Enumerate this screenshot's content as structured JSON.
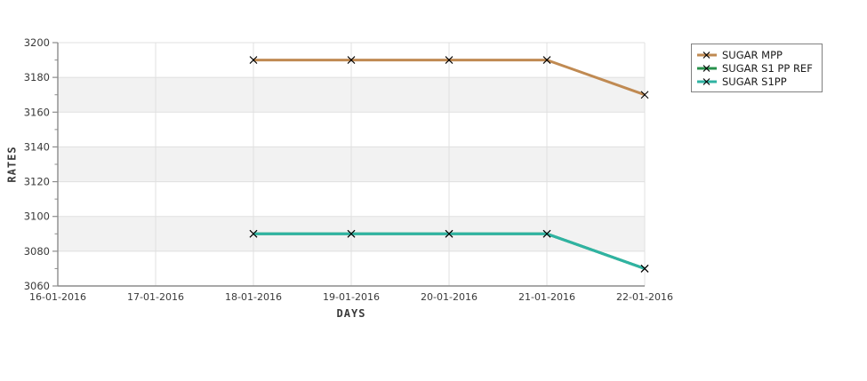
{
  "page": {
    "background": "#ffffff"
  },
  "chart_data": {
    "type": "line",
    "title": "",
    "xlabel": "DAYS",
    "ylabel": "RATES",
    "categories": [
      "16-01-2016",
      "17-01-2016",
      "18-01-2016",
      "19-01-2016",
      "20-01-2016",
      "21-01-2016",
      "22-01-2016"
    ],
    "y_ticks": [
      3060,
      3080,
      3100,
      3120,
      3140,
      3160,
      3180,
      3200
    ],
    "y_minor_step": 10,
    "ylim": [
      3060,
      3200
    ],
    "grid": true,
    "legend_position": "outside-top-right",
    "style": {
      "band_color": "#f2f2f2",
      "band_alt_color": "#ffffff",
      "grid_color": "#e0e0e0",
      "axis_color": "#8c8c8c",
      "tick_label_color": "#3a3a3a",
      "marker_color": "#000000"
    },
    "series": [
      {
        "name": "SUGAR MPP",
        "color": "#c08a52",
        "marker": "x",
        "values": [
          null,
          null,
          3190,
          3190,
          3190,
          3190,
          3170
        ]
      },
      {
        "name": "SUGAR S1 PP REF",
        "color": "#28914d",
        "marker": "x",
        "values": [
          null,
          null,
          3090,
          3090,
          3090,
          3090,
          3070
        ]
      },
      {
        "name": "SUGAR S1PP",
        "color": "#2fb3a2",
        "marker": "x",
        "values": [
          null,
          null,
          3090,
          3090,
          3090,
          3090,
          3070
        ]
      }
    ]
  }
}
